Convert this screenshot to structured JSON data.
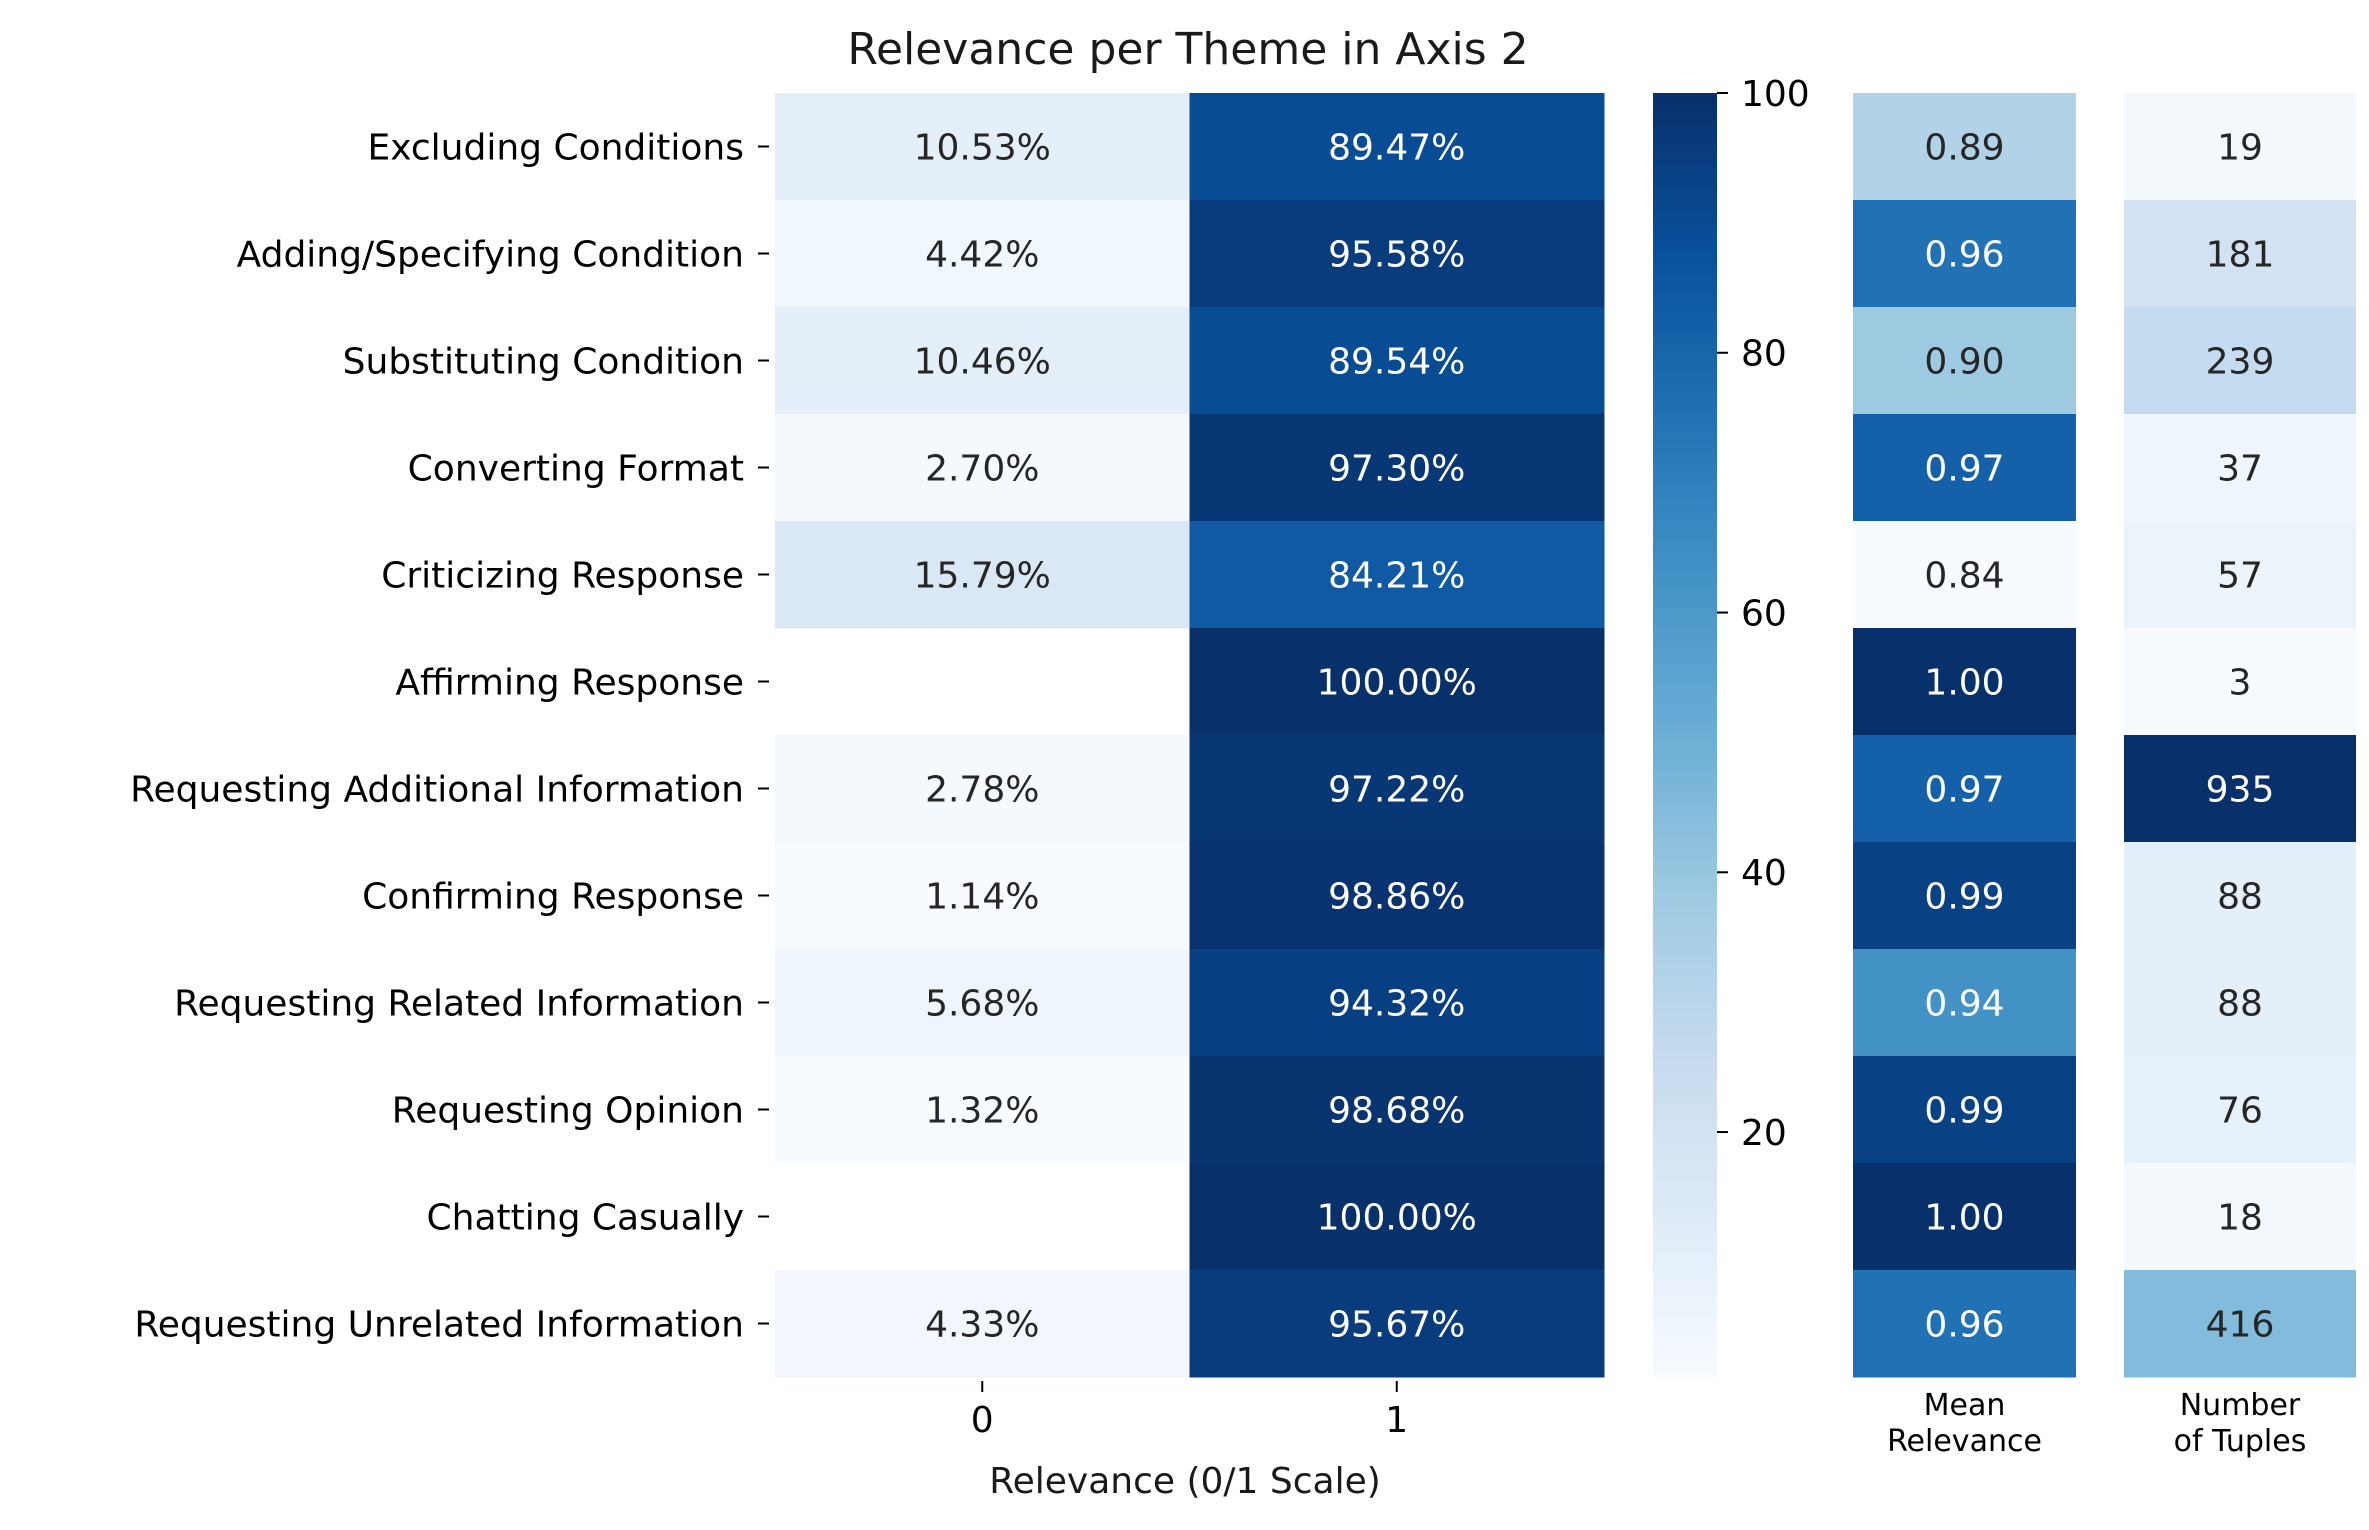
{
  "chart_data": [
    {
      "type": "heatmap",
      "title": "Relevance per Theme in Axis 2",
      "xlabel": "Relevance (0/1 Scale)",
      "ylabel": "",
      "categories": [
        "Excluding Conditions",
        "Adding/Specifying Condition",
        "Substituting Condition",
        "Converting Format",
        "Criticizing Response",
        "Affirming Response",
        "Requesting Additional Information",
        "Confirming Response",
        "Requesting Related Information",
        "Requesting Opinion",
        "Chatting Casually",
        "Requesting Unrelated Information"
      ],
      "columns": [
        "0",
        "1"
      ],
      "series": [
        {
          "values": [
            10.53,
            4.42,
            10.46,
            2.7,
            15.79,
            null,
            2.78,
            1.14,
            5.68,
            1.32,
            null,
            4.33
          ]
        },
        {
          "values": [
            89.47,
            95.58,
            89.54,
            97.3,
            84.21,
            100.0,
            97.22,
            98.86,
            94.32,
            98.68,
            100.0,
            95.67
          ]
        }
      ],
      "value_format": "percent_2dp",
      "colormap": "Blues",
      "colorbar": {
        "ticks": [
          20,
          40,
          60,
          80,
          100
        ],
        "min": 1.14,
        "max": 100
      },
      "grid": false
    },
    {
      "type": "heatmap",
      "xlabel": "Mean\nRelevance",
      "xlabel_lines": [
        "Mean",
        "Relevance"
      ],
      "values": [
        0.89,
        0.96,
        0.9,
        0.97,
        0.84,
        1.0,
        0.97,
        0.99,
        0.94,
        0.99,
        1.0,
        0.96
      ],
      "value_format": "2dp",
      "colormap": "Blues",
      "color_range": [
        0.84,
        1.0
      ]
    },
    {
      "type": "heatmap",
      "xlabel": "Number\nof Tuples",
      "xlabel_lines": [
        "Number",
        "of Tuples"
      ],
      "values": [
        19,
        181,
        239,
        37,
        57,
        3,
        935,
        88,
        88,
        76,
        18,
        416
      ],
      "value_format": "integer",
      "colormap": "Blues",
      "color_range": [
        3,
        935
      ]
    }
  ]
}
